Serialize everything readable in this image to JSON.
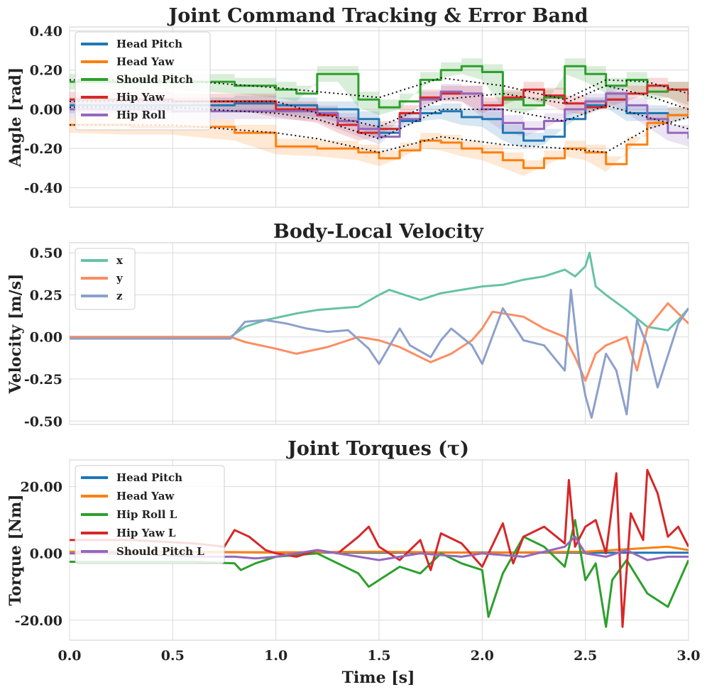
{
  "chart_data": [
    {
      "type": "line",
      "title": "Joint Command Tracking & Error Band",
      "xlabel": "",
      "ylabel": "Angle [rad]",
      "xlim": [
        0,
        3
      ],
      "ylim": [
        -0.5,
        0.42
      ],
      "xticks": [
        0.0,
        0.5,
        1.0,
        1.5,
        2.0,
        2.5,
        3.0
      ],
      "yticks": [
        0.4,
        0.2,
        0.0,
        -0.2,
        -0.4
      ],
      "ytick_labels": [
        "0.40",
        "0.20",
        "0.00",
        "-0.20",
        "-0.40"
      ],
      "legend_position": "top-left",
      "series": [
        {
          "name": "Head Pitch",
          "color": "#1f77b4",
          "step": true,
          "x": [
            0.0,
            0.3,
            0.5,
            0.8,
            1.0,
            1.2,
            1.4,
            1.5,
            1.6,
            1.7,
            1.8,
            1.9,
            2.0,
            2.1,
            2.2,
            2.3,
            2.4,
            2.5,
            2.6,
            2.7,
            2.8,
            2.9,
            3.0
          ],
          "y": [
            0.02,
            0.02,
            0.02,
            0.03,
            0.02,
            0.0,
            -0.05,
            -0.12,
            -0.06,
            -0.02,
            -0.01,
            -0.04,
            -0.05,
            -0.12,
            -0.16,
            -0.14,
            -0.05,
            0.02,
            0.05,
            -0.02,
            -0.02,
            -0.03,
            -0.01
          ]
        },
        {
          "name": "Head Yaw",
          "color": "#ff7f0e",
          "step": true,
          "x": [
            0.0,
            0.3,
            0.5,
            0.8,
            1.0,
            1.2,
            1.4,
            1.5,
            1.6,
            1.7,
            1.8,
            1.9,
            2.0,
            2.1,
            2.2,
            2.3,
            2.4,
            2.5,
            2.6,
            2.7,
            2.8,
            2.9,
            3.0
          ],
          "y": [
            -0.08,
            -0.09,
            -0.09,
            -0.12,
            -0.19,
            -0.2,
            -0.22,
            -0.25,
            -0.21,
            -0.16,
            -0.17,
            -0.2,
            -0.22,
            -0.26,
            -0.3,
            -0.25,
            -0.2,
            -0.22,
            -0.28,
            -0.18,
            -0.07,
            -0.03,
            0.0
          ]
        },
        {
          "name": "Should Pitch",
          "color": "#2ca02c",
          "step": true,
          "x": [
            0.0,
            0.3,
            0.5,
            0.8,
            1.0,
            1.1,
            1.2,
            1.3,
            1.4,
            1.5,
            1.6,
            1.7,
            1.8,
            1.9,
            2.0,
            2.1,
            2.2,
            2.3,
            2.4,
            2.5,
            2.6,
            2.7,
            2.8,
            2.9,
            3.0
          ],
          "y": [
            0.14,
            0.14,
            0.14,
            0.12,
            0.1,
            0.08,
            0.18,
            0.18,
            0.05,
            0.01,
            0.04,
            0.15,
            0.2,
            0.22,
            0.19,
            0.05,
            0.02,
            0.06,
            0.22,
            0.18,
            0.12,
            0.15,
            0.09,
            0.1,
            0.06
          ]
        },
        {
          "name": "Hip Yaw",
          "color": "#d62728",
          "step": true,
          "x": [
            0.0,
            0.3,
            0.5,
            0.8,
            1.0,
            1.2,
            1.3,
            1.4,
            1.5,
            1.6,
            1.7,
            1.8,
            1.9,
            2.0,
            2.1,
            2.2,
            2.3,
            2.4,
            2.5,
            2.6,
            2.7,
            2.8,
            2.9,
            3.0
          ],
          "y": [
            0.05,
            0.05,
            0.04,
            0.04,
            0.0,
            -0.03,
            -0.08,
            -0.12,
            -0.1,
            -0.02,
            0.06,
            0.08,
            0.08,
            0.02,
            0.06,
            0.1,
            0.07,
            0.03,
            0.01,
            0.05,
            0.08,
            0.12,
            0.1,
            0.04
          ]
        },
        {
          "name": "Hip Roll",
          "color": "#9467bd",
          "step": true,
          "x": [
            0.0,
            0.3,
            0.5,
            0.8,
            1.0,
            1.2,
            1.3,
            1.4,
            1.5,
            1.6,
            1.7,
            1.8,
            1.9,
            2.0,
            2.1,
            2.2,
            2.3,
            2.4,
            2.5,
            2.6,
            2.7,
            2.8,
            2.9,
            3.0
          ],
          "y": [
            0.0,
            0.0,
            -0.01,
            -0.01,
            -0.01,
            -0.02,
            -0.06,
            -0.1,
            -0.14,
            -0.05,
            0.05,
            0.09,
            0.08,
            0.0,
            -0.07,
            -0.1,
            -0.06,
            0.0,
            0.04,
            0.08,
            0.02,
            -0.05,
            -0.12,
            -0.15
          ]
        }
      ],
      "reference_bands": [
        {
          "x": [
            0.0,
            0.5,
            1.0,
            1.2,
            1.5,
            1.8,
            2.1,
            2.4,
            2.6,
            2.8,
            3.0
          ],
          "y": [
            0.15,
            0.15,
            0.11,
            0.09,
            0.06,
            0.16,
            0.12,
            0.05,
            0.15,
            0.14,
            0.08
          ]
        },
        {
          "x": [
            0.0,
            0.5,
            1.0,
            1.2,
            1.5,
            1.8,
            2.1,
            2.4,
            2.6,
            2.8,
            3.0
          ],
          "y": [
            0.04,
            0.04,
            0.04,
            -0.02,
            -0.09,
            0.05,
            0.08,
            0.03,
            0.12,
            0.07,
            0.0
          ]
        },
        {
          "x": [
            0.0,
            0.5,
            1.0,
            1.2,
            1.5,
            1.8,
            2.1,
            2.4,
            2.6,
            2.8,
            3.0
          ],
          "y": [
            0.01,
            0.01,
            -0.02,
            -0.05,
            -0.15,
            0.0,
            0.0,
            -0.06,
            0.02,
            -0.04,
            -0.1
          ]
        },
        {
          "x": [
            0.0,
            0.5,
            1.0,
            1.2,
            1.5,
            1.8,
            2.1,
            2.4,
            2.6,
            2.8,
            3.0
          ],
          "y": [
            -0.08,
            -0.08,
            -0.12,
            -0.15,
            -0.22,
            -0.14,
            -0.18,
            -0.2,
            -0.22,
            -0.1,
            -0.04
          ]
        }
      ]
    },
    {
      "type": "line",
      "title": "Body-Local Velocity",
      "xlabel": "",
      "ylabel": "Velocity [m/s]",
      "xlim": [
        0,
        3
      ],
      "ylim": [
        -0.52,
        0.56
      ],
      "xticks": [
        0.0,
        0.5,
        1.0,
        1.5,
        2.0,
        2.5,
        3.0
      ],
      "yticks": [
        0.5,
        0.25,
        0.0,
        -0.25,
        -0.5
      ],
      "ytick_labels": [
        "0.50",
        "0.25",
        "0.00",
        "-0.25",
        "-0.50"
      ],
      "legend_position": "top-left",
      "series": [
        {
          "name": "x",
          "color": "#66c2a5",
          "x": [
            0.0,
            0.4,
            0.78,
            0.85,
            0.95,
            1.1,
            1.2,
            1.3,
            1.4,
            1.5,
            1.55,
            1.65,
            1.7,
            1.8,
            1.9,
            2.0,
            2.1,
            2.2,
            2.3,
            2.4,
            2.45,
            2.5,
            2.52,
            2.55,
            2.6,
            2.7,
            2.8,
            2.9,
            2.95,
            3.0
          ],
          "y": [
            0.0,
            0.0,
            0.0,
            0.06,
            0.1,
            0.14,
            0.16,
            0.17,
            0.18,
            0.25,
            0.28,
            0.24,
            0.22,
            0.26,
            0.28,
            0.3,
            0.31,
            0.34,
            0.36,
            0.4,
            0.36,
            0.42,
            0.5,
            0.3,
            0.25,
            0.16,
            0.06,
            0.04,
            0.1,
            0.17
          ]
        },
        {
          "name": "y",
          "color": "#fc8d62",
          "x": [
            0.0,
            0.4,
            0.78,
            0.85,
            1.0,
            1.1,
            1.25,
            1.35,
            1.4,
            1.5,
            1.6,
            1.7,
            1.75,
            1.85,
            1.95,
            2.0,
            2.05,
            2.2,
            2.3,
            2.4,
            2.45,
            2.5,
            2.55,
            2.6,
            2.7,
            2.75,
            2.8,
            2.9,
            3.0
          ],
          "y": [
            0.0,
            0.0,
            0.0,
            -0.03,
            -0.07,
            -0.1,
            -0.06,
            -0.02,
            0.0,
            -0.02,
            -0.06,
            -0.12,
            -0.15,
            -0.1,
            -0.02,
            0.05,
            0.15,
            0.12,
            0.05,
            0.0,
            -0.12,
            -0.26,
            -0.1,
            -0.05,
            0.0,
            -0.2,
            0.05,
            0.2,
            0.08
          ]
        },
        {
          "name": "z",
          "color": "#8da0cb",
          "x": [
            0.0,
            0.4,
            0.78,
            0.85,
            0.95,
            1.05,
            1.15,
            1.25,
            1.35,
            1.45,
            1.5,
            1.6,
            1.65,
            1.75,
            1.8,
            1.85,
            1.95,
            2.0,
            2.1,
            2.2,
            2.3,
            2.4,
            2.43,
            2.47,
            2.5,
            2.53,
            2.6,
            2.65,
            2.7,
            2.75,
            2.8,
            2.85,
            2.95,
            3.0
          ],
          "y": [
            -0.01,
            -0.01,
            -0.01,
            0.09,
            0.1,
            0.08,
            0.05,
            0.03,
            0.04,
            -0.07,
            -0.16,
            0.05,
            -0.05,
            -0.12,
            -0.02,
            0.05,
            -0.05,
            -0.16,
            0.17,
            -0.02,
            -0.05,
            -0.2,
            0.28,
            -0.15,
            -0.35,
            -0.48,
            -0.1,
            -0.2,
            -0.46,
            0.1,
            -0.05,
            -0.3,
            0.08,
            0.17
          ]
        }
      ]
    },
    {
      "type": "line",
      "title": "Joint Torques (τ)",
      "xlabel": "Time [s]",
      "ylabel": "Torque [Nm]",
      "xlim": [
        0,
        3
      ],
      "ylim": [
        -26,
        28
      ],
      "xticks": [
        0.0,
        0.5,
        1.0,
        1.5,
        2.0,
        2.5,
        3.0
      ],
      "xtick_labels": [
        "0.0",
        "0.5",
        "1.0",
        "1.5",
        "2.0",
        "2.5",
        "3.0"
      ],
      "yticks": [
        20,
        0,
        -20
      ],
      "ytick_labels": [
        "20.00",
        "0.00",
        "-20.00"
      ],
      "legend_position": "top-left",
      "series": [
        {
          "name": "Head Pitch",
          "color": "#1f77b4",
          "x": [
            0.0,
            0.5,
            1.0,
            1.5,
            2.0,
            2.5,
            3.0
          ],
          "y": [
            0.5,
            0.5,
            0.3,
            0.2,
            0.3,
            0.2,
            0.2
          ]
        },
        {
          "name": "Head Yaw",
          "color": "#ff7f0e",
          "x": [
            0.0,
            0.5,
            1.0,
            1.5,
            2.0,
            2.5,
            2.9,
            3.0
          ],
          "y": [
            0.5,
            0.5,
            0.3,
            0.5,
            0.2,
            0.5,
            2.0,
            1.0
          ]
        },
        {
          "name": "Hip Roll L",
          "color": "#2ca02c",
          "x": [
            0.0,
            0.3,
            0.6,
            0.8,
            0.83,
            0.9,
            1.0,
            1.2,
            1.4,
            1.45,
            1.5,
            1.6,
            1.7,
            1.8,
            1.9,
            2.0,
            2.03,
            2.1,
            2.2,
            2.3,
            2.4,
            2.45,
            2.5,
            2.55,
            2.6,
            2.63,
            2.7,
            2.8,
            2.9,
            3.0
          ],
          "y": [
            -2.5,
            -2.5,
            -2.5,
            -3.0,
            -5.0,
            -3.0,
            -1.0,
            0.0,
            -6.0,
            -10.0,
            -8.0,
            -4.0,
            -6.0,
            0.0,
            -3.0,
            -5.0,
            -19.0,
            -6.0,
            5.0,
            2.0,
            -4.0,
            10.0,
            -8.0,
            -3.0,
            -22.0,
            -8.0,
            -2.0,
            -12.0,
            -16.0,
            -2.0
          ]
        },
        {
          "name": "Hip Yaw L",
          "color": "#d62728",
          "x": [
            0.0,
            0.3,
            0.6,
            0.75,
            0.8,
            0.87,
            0.95,
            1.0,
            1.1,
            1.2,
            1.3,
            1.4,
            1.45,
            1.5,
            1.6,
            1.7,
            1.75,
            1.8,
            1.9,
            2.0,
            2.1,
            2.15,
            2.2,
            2.3,
            2.4,
            2.42,
            2.45,
            2.5,
            2.55,
            2.6,
            2.65,
            2.68,
            2.72,
            2.78,
            2.8,
            2.85,
            2.9,
            2.95,
            3.0
          ],
          "y": [
            4.0,
            4.0,
            3.0,
            2.0,
            7.0,
            5.0,
            1.0,
            0.0,
            -1.0,
            1.0,
            0.0,
            5.0,
            8.0,
            2.0,
            -2.0,
            4.0,
            -5.0,
            6.0,
            3.0,
            -4.0,
            9.0,
            -3.0,
            5.0,
            8.0,
            3.0,
            22.0,
            2.0,
            8.0,
            10.0,
            0.0,
            24.0,
            -22.0,
            12.0,
            4.0,
            25.0,
            18.0,
            5.0,
            8.0,
            2.0
          ]
        },
        {
          "name": "Should Pitch L",
          "color": "#9467bd",
          "x": [
            0.0,
            0.3,
            0.6,
            0.8,
            0.9,
            1.0,
            1.2,
            1.4,
            1.5,
            1.7,
            1.9,
            2.0,
            2.2,
            2.4,
            2.45,
            2.5,
            2.6,
            2.7,
            2.8,
            2.9,
            3.0
          ],
          "y": [
            0.0,
            0.0,
            -1.0,
            -1.0,
            -1.5,
            -1.0,
            1.0,
            -1.0,
            -2.0,
            0.0,
            -1.0,
            0.0,
            -1.0,
            2.0,
            5.0,
            0.0,
            -1.0,
            1.0,
            -2.0,
            -1.0,
            -1.0
          ]
        }
      ]
    }
  ]
}
